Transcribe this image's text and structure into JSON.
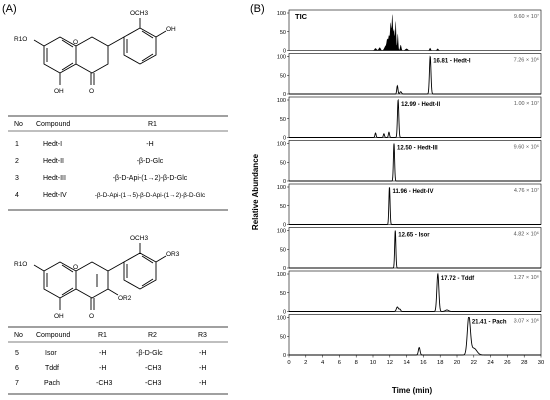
{
  "panel_a": {
    "label": "(A)",
    "structure1": {
      "substituents": {
        "r1o": "R1O",
        "ome": "OCH3",
        "oh_top": "OH",
        "oh_bottom": "OH",
        "carbonyl": "O"
      }
    },
    "table1": {
      "headers": [
        "No",
        "Compound",
        "R1"
      ],
      "rows": [
        {
          "no": "1",
          "compound": "Hedt-I",
          "r1": "-H"
        },
        {
          "no": "2",
          "compound": "Hedt-II",
          "r1": "-β-D-Glc"
        },
        {
          "no": "3",
          "compound": "Hedt-III",
          "r1": "-β-D-Api-(1→2)-β-D-Glc"
        },
        {
          "no": "4",
          "compound": "Hedt-IV",
          "r1": "-β-D-Api-(1→5)-β-D-Api-(1→2)-β-D-Glc"
        }
      ]
    },
    "structure2": {
      "substituents": {
        "r1o": "R1O",
        "ome": "OCH3",
        "or3": "OR3",
        "or2": "OR2",
        "oh_bottom": "OH",
        "carbonyl": "O"
      }
    },
    "table2": {
      "headers": [
        "No",
        "Compound",
        "R1",
        "R2",
        "R3"
      ],
      "rows": [
        {
          "no": "5",
          "compound": "Isor",
          "r1": "-H",
          "r2": "-β-D-Glc",
          "r3": "-H"
        },
        {
          "no": "6",
          "compound": "Tddf",
          "r1": "-H",
          "r2": "-CH3",
          "r3": "-H"
        },
        {
          "no": "7",
          "compound": "Pach",
          "r1": "-CH3",
          "r2": "-CH3",
          "r3": "-H"
        }
      ]
    }
  },
  "chart_data": {
    "type": "line",
    "panel_label": "(B)",
    "xlabel": "Time (min)",
    "ylabel": "Relative Abundance",
    "xlim": [
      0,
      30
    ],
    "x_ticks": [
      0,
      2,
      4,
      6,
      8,
      10,
      12,
      14,
      16,
      18,
      20,
      22,
      24,
      26,
      28,
      30
    ],
    "ylim": [
      0,
      100
    ],
    "y_ticks": [
      0,
      50,
      100
    ],
    "traces": [
      {
        "name": "TIC",
        "label": "TIC",
        "intensity": "9.60 × 10⁷",
        "peaks": [
          [
            10.3,
            6,
            0.12
          ],
          [
            10.8,
            8,
            0.12
          ],
          [
            11.5,
            12,
            0.15
          ],
          [
            11.7,
            25,
            0.08
          ],
          [
            11.9,
            38,
            0.08
          ],
          [
            12.1,
            72,
            0.07
          ],
          [
            12.3,
            95,
            0.07
          ],
          [
            12.5,
            55,
            0.07
          ],
          [
            12.7,
            78,
            0.06
          ],
          [
            12.95,
            45,
            0.06
          ],
          [
            13.3,
            15,
            0.08
          ],
          [
            14.0,
            5,
            0.15
          ],
          [
            16.8,
            7,
            0.08
          ],
          [
            17.7,
            5,
            0.1
          ]
        ]
      },
      {
        "name": "Hedt-I",
        "label": "16.81 - Hedt-I",
        "intensity": "7.26 × 10⁶",
        "peaks": [
          [
            12.9,
            22,
            0.07
          ],
          [
            13.3,
            6,
            0.1
          ],
          [
            16.81,
            100,
            0.09
          ]
        ]
      },
      {
        "name": "Hedt-II",
        "label": "12.99 - Hedt-II",
        "intensity": "1.00 × 10⁷",
        "peaks": [
          [
            10.3,
            12,
            0.07
          ],
          [
            11.3,
            10,
            0.07
          ],
          [
            11.9,
            14,
            0.07
          ],
          [
            12.99,
            100,
            0.08
          ]
        ]
      },
      {
        "name": "Hedt-III",
        "label": "12.50 - Hedt-III",
        "intensity": "9.60 × 10⁶",
        "peaks": [
          [
            12.5,
            100,
            0.07
          ]
        ]
      },
      {
        "name": "Hedt-IV",
        "label": "11.96 - Hedt-IV",
        "intensity": "4.76 × 10⁷",
        "peaks": [
          [
            11.96,
            100,
            0.07
          ]
        ]
      },
      {
        "name": "Isor",
        "label": "12.65 - Isor",
        "intensity": "4.82 × 10⁶",
        "peaks": [
          [
            12.65,
            100,
            0.07
          ]
        ]
      },
      {
        "name": "Tddf",
        "label": "17.72 - Tddf",
        "intensity": "1.27 × 10⁶",
        "peaks": [
          [
            12.9,
            12,
            0.12
          ],
          [
            13.2,
            6,
            0.1
          ],
          [
            17.72,
            100,
            0.12
          ],
          [
            18.8,
            4,
            0.2
          ]
        ]
      },
      {
        "name": "Pach",
        "label": "21.41 - Pach",
        "intensity": "3.07 × 10⁶",
        "peaks": [
          [
            15.5,
            20,
            0.1
          ],
          [
            21.41,
            100,
            0.18
          ],
          [
            22.0,
            18,
            0.35
          ]
        ]
      }
    ]
  }
}
